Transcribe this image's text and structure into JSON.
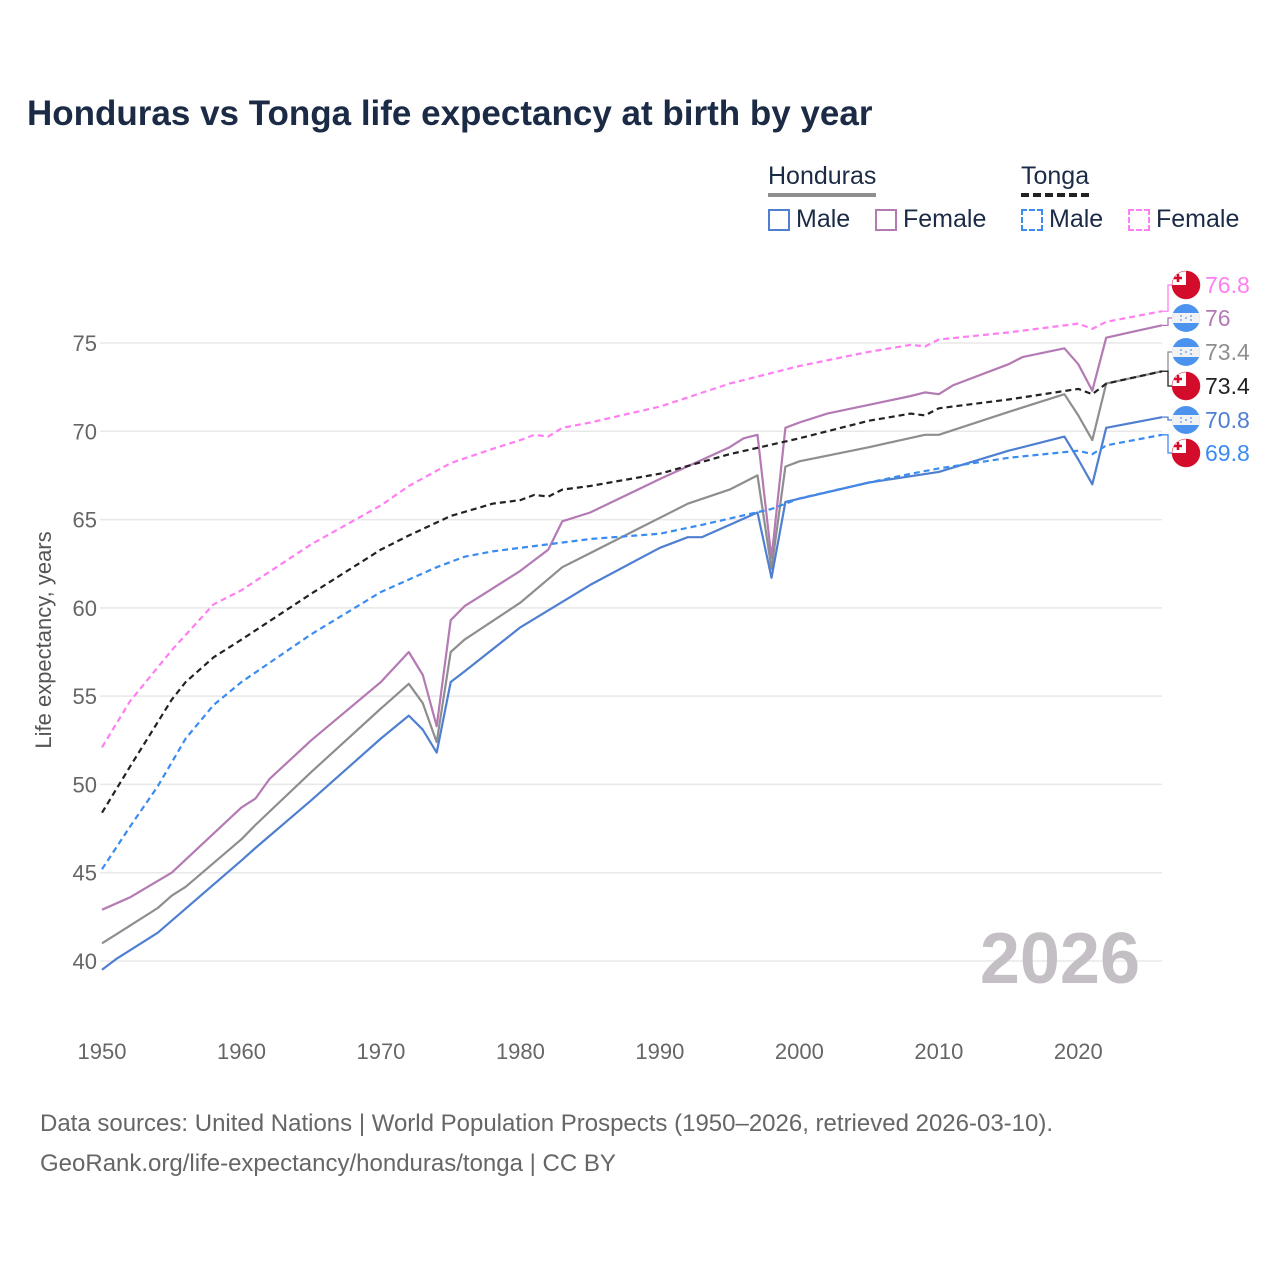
{
  "title": "Honduras vs Tonga life expectancy at birth by year",
  "legend": {
    "honduras": {
      "label": "Honduras",
      "male": "Male",
      "female": "Female"
    },
    "tonga": {
      "label": "Tonga",
      "male": "Male",
      "female": "Female"
    }
  },
  "source": {
    "line1": "Data sources: United Nations | World Population Prospects (1950–2026, retrieved 2026-03-10).",
    "line2": "GeoRank.org/life-expectancy/honduras/tonga | CC BY"
  },
  "chart_data": {
    "type": "line",
    "title": "Honduras vs Tonga life expectancy at birth by year",
    "xlabel": "",
    "ylabel": "Life expectancy, years",
    "xlim": [
      1950,
      2026
    ],
    "ylim": [
      38,
      78
    ],
    "x_ticks": [
      1950,
      1960,
      1970,
      1980,
      1990,
      2000,
      2010,
      2020
    ],
    "y_ticks": [
      40,
      45,
      50,
      55,
      60,
      65,
      70,
      75
    ],
    "grid": true,
    "legend_position": "top-right",
    "watermark": "2026",
    "series": [
      {
        "name": "Tonga Female",
        "color": "#ff7ff2",
        "dashed": true,
        "flag": "tonga",
        "end_label": "76.8",
        "x": [
          1950,
          1952,
          1955,
          1958,
          1960,
          1965,
          1970,
          1972,
          1975,
          1978,
          1980,
          1981,
          1982,
          1983,
          1985,
          1990,
          1995,
          2000,
          2005,
          2008,
          2009,
          2010,
          2015,
          2020,
          2021,
          2022,
          2026
        ],
        "y": [
          52.1,
          54.7,
          57.6,
          60.2,
          61.0,
          63.6,
          65.8,
          66.9,
          68.2,
          69.0,
          69.5,
          69.8,
          69.7,
          70.2,
          70.5,
          71.4,
          72.7,
          73.7,
          74.5,
          74.9,
          74.8,
          75.2,
          75.6,
          76.1,
          75.8,
          76.2,
          76.8
        ]
      },
      {
        "name": "Honduras Female",
        "color": "#b47ab4",
        "dashed": false,
        "flag": "honduras",
        "end_label": "76",
        "x": [
          1950,
          1952,
          1955,
          1960,
          1961,
          1962,
          1965,
          1970,
          1972,
          1973,
          1974,
          1975,
          1976,
          1977,
          1980,
          1982,
          1983,
          1985,
          1990,
          1995,
          1996,
          1997,
          1998,
          1999,
          2000,
          2002,
          2005,
          2008,
          2009,
          2010,
          2011,
          2015,
          2016,
          2019,
          2020,
          2021,
          2022,
          2026
        ],
        "y": [
          42.9,
          43.6,
          45.0,
          48.7,
          49.2,
          50.3,
          52.5,
          55.8,
          57.5,
          56.2,
          53.3,
          59.3,
          60.1,
          60.6,
          62.1,
          63.3,
          64.9,
          65.4,
          67.3,
          69.1,
          69.6,
          69.8,
          62.8,
          70.2,
          70.5,
          71.0,
          71.5,
          72.0,
          72.2,
          72.1,
          72.6,
          73.8,
          74.2,
          74.7,
          73.8,
          72.3,
          75.3,
          76.0
        ]
      },
      {
        "name": "Honduras",
        "color": "#8e8e8e",
        "dashed": false,
        "flag": "honduras",
        "end_label": "73.4",
        "x": [
          1950,
          1952,
          1954,
          1955,
          1956,
          1960,
          1961,
          1965,
          1970,
          1972,
          1973,
          1974,
          1975,
          1976,
          1980,
          1983,
          1985,
          1990,
          1992,
          1995,
          1997,
          1998,
          1999,
          2000,
          2005,
          2009,
          2010,
          2015,
          2019,
          2020,
          2021,
          2022,
          2026
        ],
        "y": [
          41.0,
          42.0,
          43.0,
          43.7,
          44.2,
          46.9,
          47.7,
          50.7,
          54.3,
          55.7,
          54.6,
          52.4,
          57.5,
          58.2,
          60.3,
          62.3,
          63.1,
          65.1,
          65.9,
          66.7,
          67.5,
          62.2,
          68.0,
          68.3,
          69.1,
          69.8,
          69.8,
          71.1,
          72.1,
          70.9,
          69.5,
          72.7,
          73.4
        ]
      },
      {
        "name": "Tonga",
        "color": "#222222",
        "dashed": true,
        "flag": "tonga",
        "end_label": "73.4",
        "x": [
          1950,
          1952,
          1955,
          1956,
          1958,
          1960,
          1965,
          1970,
          1972,
          1975,
          1978,
          1980,
          1981,
          1982,
          1983,
          1985,
          1990,
          1995,
          2000,
          2005,
          2008,
          2009,
          2010,
          2015,
          2020,
          2021,
          2022,
          2026
        ],
        "y": [
          48.4,
          51.0,
          54.8,
          55.8,
          57.2,
          58.2,
          60.8,
          63.3,
          64.1,
          65.2,
          65.9,
          66.1,
          66.4,
          66.3,
          66.7,
          66.9,
          67.6,
          68.7,
          69.6,
          70.6,
          71.0,
          70.9,
          71.3,
          71.8,
          72.4,
          72.1,
          72.7,
          73.4
        ]
      },
      {
        "name": "Honduras Male",
        "color": "#4f7fd0",
        "dashed": false,
        "flag": "honduras",
        "end_label": "70.8",
        "x": [
          1950,
          1951,
          1954,
          1960,
          1961,
          1965,
          1970,
          1972,
          1973,
          1974,
          1975,
          1976,
          1980,
          1985,
          1990,
          1992,
          1993,
          1997,
          1998,
          1999,
          2005,
          2010,
          2015,
          2019,
          2020,
          2021,
          2022,
          2026
        ],
        "y": [
          39.5,
          40.1,
          41.6,
          45.7,
          46.4,
          49.1,
          52.6,
          53.9,
          53.1,
          51.8,
          55.8,
          56.4,
          58.9,
          61.3,
          63.4,
          64.0,
          64.0,
          65.4,
          61.7,
          66.0,
          67.1,
          67.7,
          68.9,
          69.7,
          68.4,
          67.0,
          70.2,
          70.8
        ]
      },
      {
        "name": "Tonga Male",
        "color": "#3b8cf0",
        "dashed": true,
        "flag": "tonga",
        "end_label": "69.8",
        "x": [
          1950,
          1952,
          1954,
          1956,
          1958,
          1960,
          1965,
          1970,
          1972,
          1974,
          1976,
          1978,
          1980,
          1985,
          1990,
          1993,
          1998,
          2000,
          2005,
          2008,
          2010,
          2015,
          2020,
          2021,
          2022,
          2026
        ],
        "y": [
          45.2,
          47.6,
          49.9,
          52.6,
          54.5,
          55.8,
          58.5,
          60.9,
          61.6,
          62.3,
          62.9,
          63.2,
          63.4,
          63.9,
          64.2,
          64.7,
          65.6,
          66.2,
          67.1,
          67.6,
          67.9,
          68.5,
          68.9,
          68.7,
          69.2,
          69.8
        ]
      }
    ]
  }
}
